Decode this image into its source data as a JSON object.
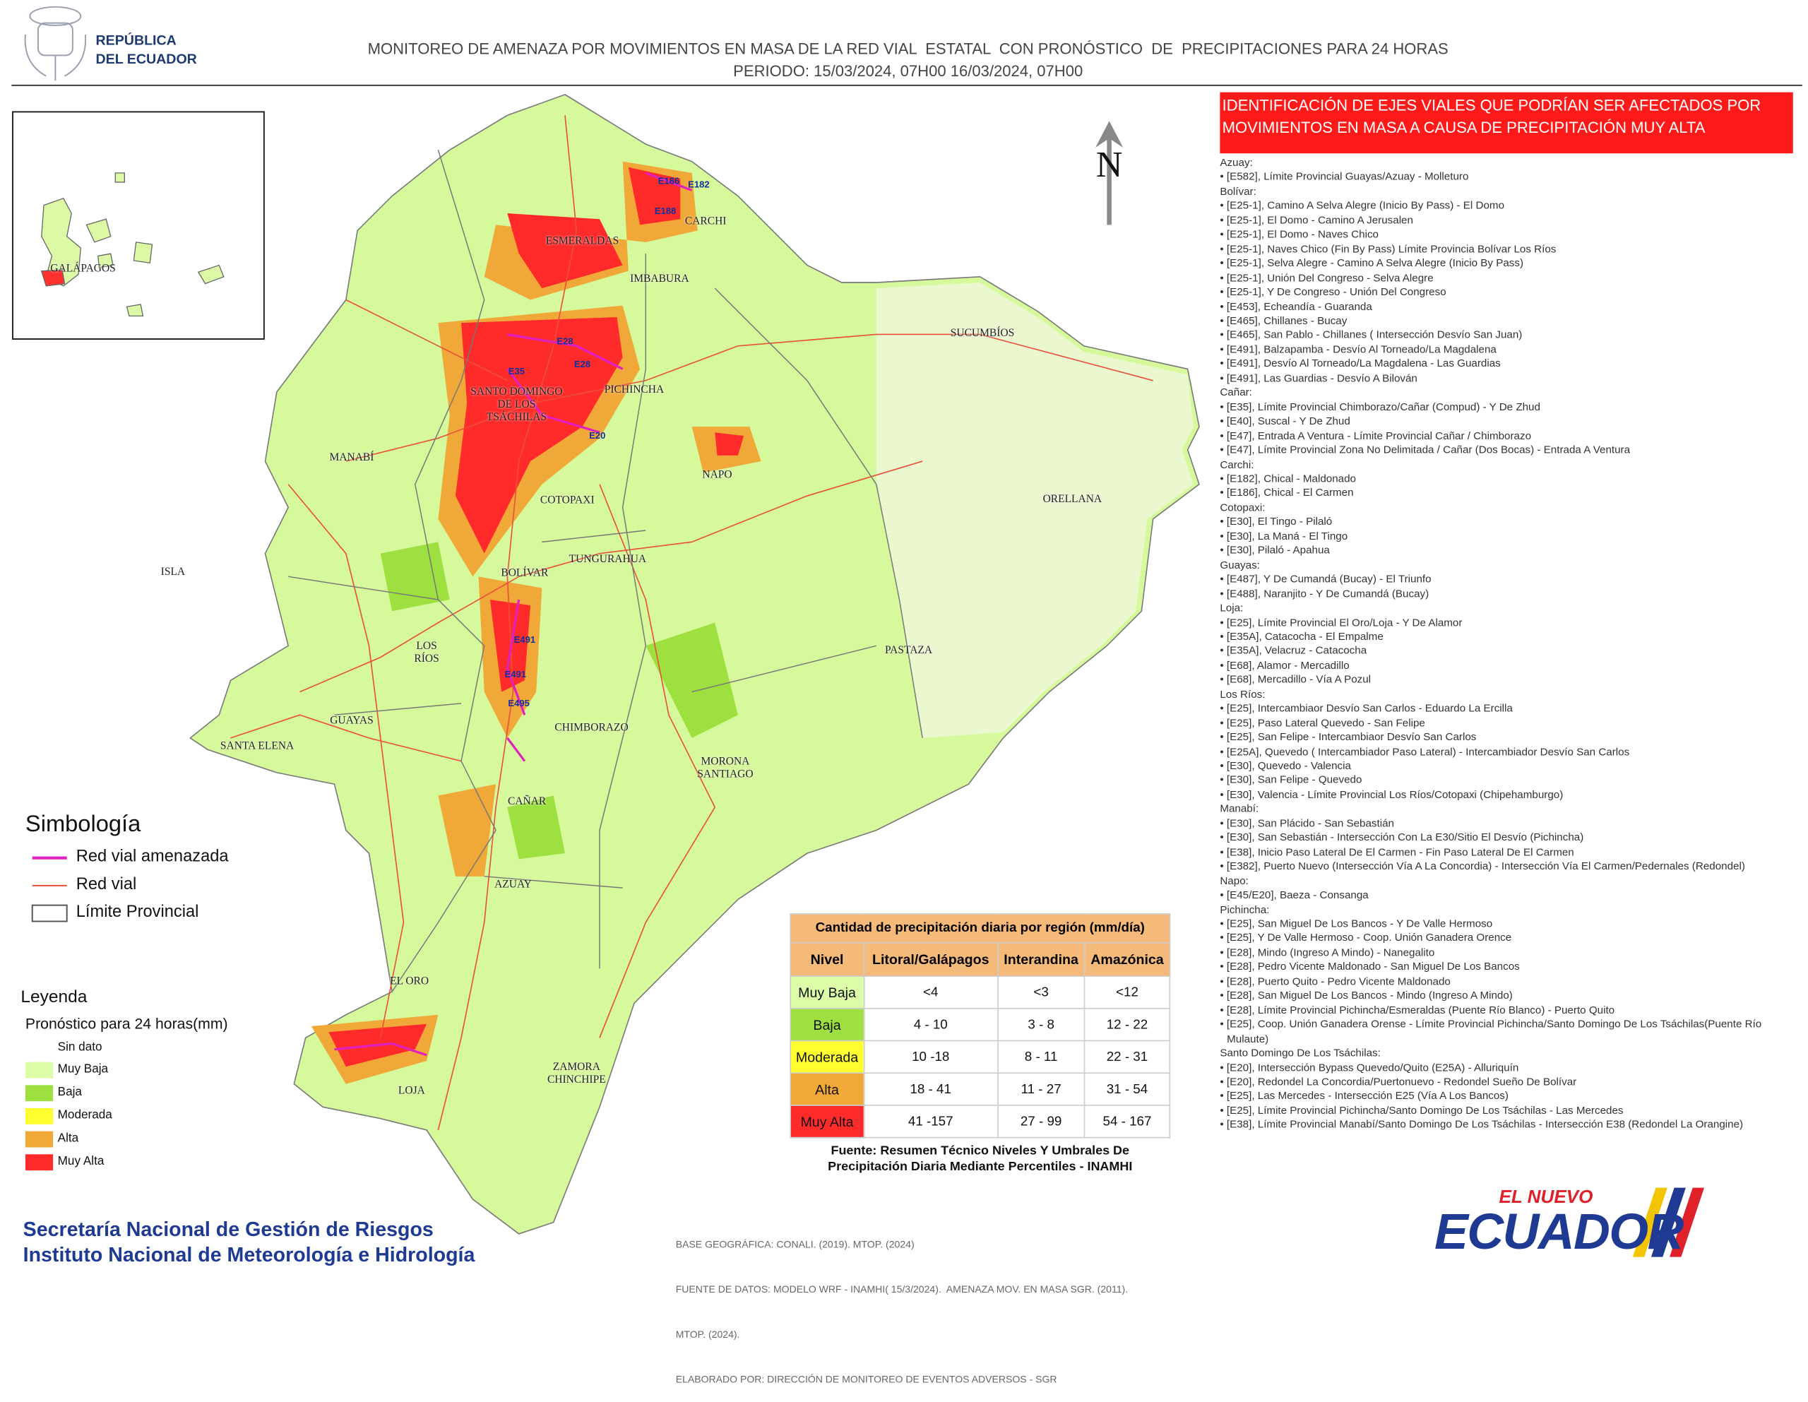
{
  "header": {
    "logo_line1": "REPÚBLICA",
    "logo_line2": "DEL ECUADOR",
    "title": "MONITOREO DE AMENAZA POR MOVIMIENTOS EN MASA DE LA RED VIAL  ESTATAL  CON PRONÓSTICO  DE  PRECIPITACIONES PARA 24 HORAS",
    "period": "PERIODO: 15/03/2024, 07H00 16/03/2024, 07H00"
  },
  "map": {
    "north": "N",
    "province_labels": [
      "ESMERALDAS",
      "CARCHI",
      "IMBABURA",
      "SUCUMBÍOS",
      "PICHINCHA",
      "SANTO DOMINGO\nDE LOS\nTSÁCHILAS",
      "MANABÍ",
      "NAPO",
      "ORELLANA",
      "COTOPAXI",
      "ISLA",
      "BOLÍVAR",
      "TUNGURAHUA",
      "LOS\nRÍOS",
      "PASTAZA",
      "GUAYAS",
      "SANTA ELENA",
      "CHIMBORAZO",
      "MORONA\nSANTIAGO",
      "CAÑAR",
      "AZUAY",
      "EL ORO",
      "ZAMORA\nCHINCHIPE",
      "LOJA",
      "GALÁPAGOS"
    ],
    "road_labels": [
      "E182",
      "E186",
      "E188",
      "E28",
      "E28",
      "E35",
      "E20",
      "E491",
      "E491",
      "E495"
    ]
  },
  "simbologia": {
    "title": "Simbología",
    "items": [
      {
        "label": "Red vial amenazada",
        "color": "#e020c0"
      },
      {
        "label": "Red vial",
        "color": "#e8503a"
      },
      {
        "label": "Límite Provincial",
        "color": "#555555"
      }
    ]
  },
  "leyenda": {
    "title": "Leyenda",
    "subtitle": "Pronóstico para 24 horas(mm)",
    "no_data": "Sin dato",
    "classes": [
      {
        "label": "Muy Baja",
        "color": "#ddfca8"
      },
      {
        "label": "Baja",
        "color": "#9ee040"
      },
      {
        "label": "Moderada",
        "color": "#ffff30"
      },
      {
        "label": "Alta",
        "color": "#f0a838"
      },
      {
        "label": "Muy Alta",
        "color": "#ff2a2a"
      }
    ]
  },
  "table": {
    "title": "Cantidad de precipitación diaria por región (mm/día)",
    "headers": [
      "Nivel",
      "Litoral/Galápagos",
      "Interandina",
      "Amazónica"
    ],
    "rows": [
      [
        "Muy Baja",
        "<4",
        "<3",
        "<12"
      ],
      [
        "Baja",
        "4 - 10",
        "3 - 8",
        "12 - 22"
      ],
      [
        "Moderada",
        "10 -18",
        "8 - 11",
        "22 - 31"
      ],
      [
        "Alta",
        "18 - 41",
        "11 - 27",
        "31 - 54"
      ],
      [
        "Muy Alta",
        "41 -157",
        "27 - 99",
        "54 - 167"
      ]
    ],
    "source": [
      "Fuente: Resumen Técnico Niveles Y Umbrales De",
      "Precipitación Diaria Mediante Percentiles - INAMHI"
    ]
  },
  "panel": {
    "title": [
      "IDENTIFICACIÓN DE EJES VIALES QUE PODRÍAN SER AFECTADOS POR",
      "MOVIMIENTOS EN MASA A CAUSA DE PRECIPITACIÓN MUY ALTA"
    ],
    "groups": [
      {
        "name": "Azuay:",
        "items": [
          "[E582], Límite Provincial Guayas/Azuay - Molleturo"
        ]
      },
      {
        "name": "Bolívar:",
        "items": [
          "[E25-1], Camino A Selva Alegre (Inicio By Pass) -  El Domo",
          "[E25-1], El Domo - Camino A Jerusalen",
          "[E25-1], El Domo - Naves Chico",
          "[E25-1], Naves Chico (Fin By Pass) Límite Provincia Bolívar Los Ríos",
          "[E25-1], Selva Alegre - Camino A Selva Alegre (Inicio By Pass)",
          "[E25-1], Unión Del Congreso - Selva  Alegre",
          "[E25-1], Y De Congreso - Unión Del Congreso",
          "[E453], Echeandía - Guaranda",
          "[E465], Chillanes - Bucay",
          "[E465], San Pablo - Chillanes ( Intersección Desvío San Juan)",
          "[E491], Balzapamba - Desvío Al Torneado/La Magdalena",
          "[E491], Desvío Al Torneado/La Magdalena - Las Guardias",
          "[E491], Las Guardias - Desvío A Bilován"
        ]
      },
      {
        "name": "Cañar:",
        "items": [
          "[E35], Límite Provincial Chimborazo/Cañar (Compud) - Y De Zhud",
          "[E40], Suscal - Y De Zhud",
          "[E47], Entrada A Ventura -  Límite Provincial Cañar / Chimborazo",
          "[E47], Límite Provincial Zona No Delimitada / Cañar (Dos Bocas) - Entrada  A Ventura"
        ]
      },
      {
        "name": "Carchi:",
        "items": [
          "[E182], Chical - Maldonado",
          "[E186], Chical - El Carmen"
        ]
      },
      {
        "name": "Cotopaxi:",
        "items": [
          "[E30], El Tingo - Pilaló",
          "[E30], La Maná - El Tingo",
          "[E30], Pilaló - Apahua"
        ]
      },
      {
        "name": "Guayas:",
        "items": [
          "[E487], Y De Cumandá (Bucay) - El Triunfo",
          "[E488], Naranjito - Y De Cumandá (Bucay)"
        ]
      },
      {
        "name": "Loja:",
        "items": [
          "[E25], Límite Provincial El Oro/Loja - Y De Alamor",
          "[E35A], Catacocha - El Empalme",
          "[E35A], Velacruz - Catacocha",
          "[E68], Alamor - Mercadillo",
          "[E68], Mercadillo - Vía  A Pozul"
        ]
      },
      {
        "name": "Los Ríos:",
        "items": [
          "[E25], Intercambiaor Desvío  San Carlos - Eduardo La Ercilla",
          "[E25], Paso Lateral Quevedo - San Felipe",
          "[E25], San Felipe  - Intercambiaor Desvío  San Carlos",
          "[E25A], Quevedo ( Intercambiador Paso Lateral) - Intercambiador Desvío  San Carlos",
          "[E30], Quevedo - Valencia",
          "[E30], San Felipe - Quevedo",
          "[E30], Valencia - Límite Provincial Los Ríos/Cotopaxi (Chipehamburgo)"
        ]
      },
      {
        "name": "Manabí:",
        "items": [
          "[E30], San Plácido - San Sebastián",
          "[E30], San Sebastián - Intersección Con La E30/Sitio El Desvío (Pichincha)",
          "[E38], Inicio Paso Lateral De El Carmen - Fin Paso Lateral De El Carmen",
          "[E382], Puerto Nuevo (Intersección Vía A La Concordia) - Intersección Vía El Carmen/Pedernales (Redondel)"
        ]
      },
      {
        "name": "Napo:",
        "items": [
          "[E45/E20], Baeza - Consanga"
        ]
      },
      {
        "name": "Pichincha:",
        "items": [
          "[E25], San Miguel De Los Bancos - Y De Valle Hermoso",
          "[E25], Y De Valle Hermoso - Coop. Unión Ganadera Orence",
          "[E28], Mindo (Ingreso A Mindo) - Nanegalito",
          "[E28], Pedro Vicente Maldonado - San Miguel De Los Bancos",
          "[E28], Puerto Quito - Pedro Vicente Maldonado",
          "[E28], San Miguel De Los Bancos - Mindo (Ingreso A Mindo)",
          "[E28], Límite Provincial Pichincha/Esmeraldas (Puente Río Blanco) - Puerto Quito",
          "[E25], Coop. Unión Ganadera Orense - Límite Provincial Pichincha/Santo Domingo De Los Tsáchilas(Puente Río Mulaute)"
        ]
      },
      {
        "name": "Santo Domingo De Los Tsáchilas:",
        "items": [
          "[E20], Intersección Bypass Quevedo/Quito (E25A) - Alluriquín",
          "[E20], Redondel La Concordia/Puertonuevo - Redondel Sueño De Bolívar",
          "[E25], Las Mercedes - Intersección E25 (Vía A Los Bancos)",
          "[E25], Límite Provincial Pichincha/Santo Domingo De Los Tsáchilas - Las Mercedes",
          "[E38], Límite Provincial Manabí/Santo Domingo De Los Tsáchilas - Intersección E38 (Redondel La Orangine)"
        ]
      }
    ]
  },
  "footer": {
    "org_lines": [
      "Secretaría Nacional de Gestión de Riesgos",
      "Instituto Nacional de Meteorología e Hidrología"
    ],
    "credits": [
      "BASE GEOGRÁFICA: CONALI. (2019). MTOP. (2024)",
      "FUENTE DE DATOS: MODELO WRF - INAMHI( 15/3/2024).  AMENAZA MOV. EN MASA SGR. (2011).",
      "MTOP. (2024).",
      "ELABORADO POR: DIRECCIÓN DE MONITOREO DE EVENTOS ADVERSOS - SGR"
    ],
    "brand_top": "EL NUEVO",
    "brand_main": "ECUADOR"
  }
}
